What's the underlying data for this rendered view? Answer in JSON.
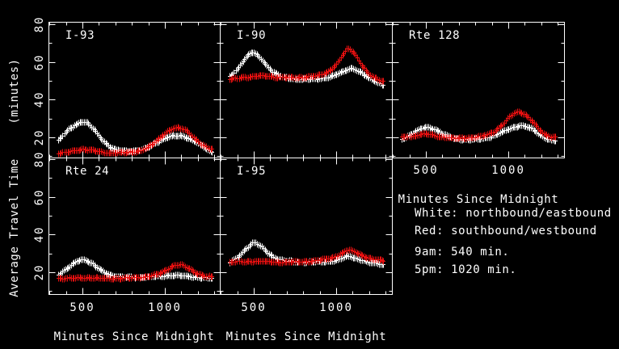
{
  "window": {
    "background": "#000000",
    "foreground": "#ffffff"
  },
  "axes": {
    "x_label": "Minutes Since Midnight",
    "y_label_line1": "Average Travel Time",
    "y_label_line2": "(minutes)",
    "x_tick_labels": [
      "500",
      "1000"
    ],
    "y_tick_labels": [
      "80",
      "60",
      "40",
      "20"
    ]
  },
  "legend": {
    "lines": [
      "White: northbound/eastbound",
      "Red: southbound/westbound",
      "9am: 540 min.",
      "5pm: 1020 min."
    ]
  },
  "chart_data": {
    "type": "scatter",
    "marker": "plus",
    "layout": "2x3 small multiples, shared axes",
    "xlabel": "Minutes Since Midnight",
    "ylabel": "Average Travel Time (minutes)",
    "xlim": [
      294,
      1328
    ],
    "ylim": [
      8,
      81
    ],
    "x_ticks_major": [
      500,
      1000
    ],
    "x_tick_minor_step": 100,
    "x_minor_range": [
      300,
      1300
    ],
    "y_ticks_major": [
      20,
      40,
      60,
      80
    ],
    "y_tick_minor_step": 10,
    "grid": false,
    "colors": {
      "white": "#ffffff",
      "red": "#e81010"
    },
    "series_meaning": {
      "white": "northbound/eastbound",
      "red": "southbound/westbound"
    },
    "panels": [
      {
        "title": "I-93",
        "row": 0,
        "col": 0,
        "white": [
          [
            355,
            18.5
          ],
          [
            400,
            23
          ],
          [
            450,
            26.5
          ],
          [
            500,
            28.5
          ],
          [
            545,
            26.5
          ],
          [
            590,
            22
          ],
          [
            640,
            17
          ],
          [
            690,
            14
          ],
          [
            740,
            13
          ],
          [
            800,
            13
          ],
          [
            850,
            13.5
          ],
          [
            900,
            15
          ],
          [
            950,
            17.5
          ],
          [
            1000,
            19.8
          ],
          [
            1050,
            20.8
          ],
          [
            1100,
            20.8
          ],
          [
            1150,
            19.5
          ],
          [
            1200,
            17
          ],
          [
            1250,
            14
          ],
          [
            1285,
            12.3
          ]
        ],
        "red": [
          [
            355,
            11.8
          ],
          [
            410,
            12.3
          ],
          [
            460,
            13.3
          ],
          [
            505,
            13.8
          ],
          [
            555,
            13.3
          ],
          [
            605,
            12.4
          ],
          [
            660,
            12
          ],
          [
            720,
            12
          ],
          [
            780,
            12.2
          ],
          [
            840,
            13
          ],
          [
            895,
            14.8
          ],
          [
            945,
            18
          ],
          [
            995,
            22
          ],
          [
            1040,
            24.5
          ],
          [
            1085,
            25
          ],
          [
            1130,
            23.5
          ],
          [
            1175,
            20
          ],
          [
            1220,
            16.5
          ],
          [
            1260,
            14.5
          ],
          [
            1285,
            13.8
          ]
        ]
      },
      {
        "title": "I-90",
        "row": 0,
        "col": 1,
        "white": [
          [
            355,
            52.5
          ],
          [
            400,
            56.5
          ],
          [
            450,
            62.5
          ],
          [
            492,
            65
          ],
          [
            535,
            62.5
          ],
          [
            580,
            58
          ],
          [
            630,
            54
          ],
          [
            680,
            52
          ],
          [
            740,
            51.2
          ],
          [
            810,
            51
          ],
          [
            880,
            51.2
          ],
          [
            950,
            52
          ],
          [
            1010,
            53.8
          ],
          [
            1060,
            55.8
          ],
          [
            1095,
            56.8
          ],
          [
            1140,
            55
          ],
          [
            1190,
            52
          ],
          [
            1240,
            49.8
          ],
          [
            1285,
            48
          ]
        ],
        "red": [
          [
            355,
            50.8
          ],
          [
            420,
            51.8
          ],
          [
            490,
            52.3
          ],
          [
            550,
            52.8
          ],
          [
            610,
            52.3
          ],
          [
            680,
            52
          ],
          [
            750,
            51.8
          ],
          [
            820,
            52.2
          ],
          [
            890,
            53
          ],
          [
            950,
            55
          ],
          [
            1000,
            59
          ],
          [
            1045,
            64.5
          ],
          [
            1075,
            67
          ],
          [
            1110,
            64.5
          ],
          [
            1155,
            58.5
          ],
          [
            1205,
            53
          ],
          [
            1250,
            51
          ],
          [
            1285,
            50
          ]
        ]
      },
      {
        "title": "Rte 128",
        "row": 0,
        "col": 2,
        "white": [
          [
            355,
            19.5
          ],
          [
            405,
            21.5
          ],
          [
            455,
            24
          ],
          [
            505,
            25.5
          ],
          [
            550,
            24.5
          ],
          [
            600,
            22
          ],
          [
            655,
            20
          ],
          [
            710,
            19.2
          ],
          [
            770,
            19
          ],
          [
            830,
            19.3
          ],
          [
            890,
            20.5
          ],
          [
            950,
            22.5
          ],
          [
            1010,
            24.8
          ],
          [
            1060,
            26.3
          ],
          [
            1105,
            26
          ],
          [
            1155,
            23.8
          ],
          [
            1205,
            20.8
          ],
          [
            1250,
            19
          ],
          [
            1285,
            18.5
          ]
        ],
        "red": [
          [
            355,
            20.2
          ],
          [
            420,
            20.8
          ],
          [
            480,
            21.8
          ],
          [
            525,
            21.8
          ],
          [
            585,
            20.5
          ],
          [
            650,
            19.8
          ],
          [
            720,
            19.8
          ],
          [
            790,
            20.2
          ],
          [
            855,
            21.2
          ],
          [
            915,
            23.5
          ],
          [
            965,
            27
          ],
          [
            1005,
            30.8
          ],
          [
            1045,
            33.3
          ],
          [
            1090,
            32.8
          ],
          [
            1140,
            29
          ],
          [
            1190,
            24
          ],
          [
            1240,
            21
          ],
          [
            1285,
            20.2
          ]
        ]
      },
      {
        "title": "Rte 24",
        "row": 1,
        "col": 0,
        "white": [
          [
            355,
            18.8
          ],
          [
            405,
            22
          ],
          [
            455,
            25.5
          ],
          [
            500,
            27
          ],
          [
            545,
            25.3
          ],
          [
            590,
            22.5
          ],
          [
            640,
            19.8
          ],
          [
            690,
            18.2
          ],
          [
            750,
            17.6
          ],
          [
            820,
            17.5
          ],
          [
            890,
            17.6
          ],
          [
            960,
            18
          ],
          [
            1030,
            18.5
          ],
          [
            1100,
            18.3
          ],
          [
            1170,
            17.8
          ],
          [
            1230,
            17.3
          ],
          [
            1285,
            17
          ]
        ],
        "red": [
          [
            355,
            16.9
          ],
          [
            430,
            17
          ],
          [
            510,
            17.3
          ],
          [
            590,
            17
          ],
          [
            670,
            16.9
          ],
          [
            750,
            17
          ],
          [
            830,
            17.4
          ],
          [
            900,
            18
          ],
          [
            960,
            19.3
          ],
          [
            1010,
            21.5
          ],
          [
            1055,
            23.8
          ],
          [
            1095,
            24
          ],
          [
            1140,
            22.3
          ],
          [
            1190,
            19.8
          ],
          [
            1240,
            18.2
          ],
          [
            1285,
            17.7
          ]
        ]
      },
      {
        "title": "I-95",
        "row": 1,
        "col": 1,
        "white": [
          [
            355,
            25.2
          ],
          [
            405,
            28.5
          ],
          [
            455,
            33
          ],
          [
            500,
            35.8
          ],
          [
            540,
            34
          ],
          [
            585,
            30.5
          ],
          [
            635,
            27.5
          ],
          [
            690,
            26.2
          ],
          [
            750,
            25.8
          ],
          [
            820,
            25.6
          ],
          [
            890,
            25.7
          ],
          [
            950,
            26
          ],
          [
            1010,
            26.8
          ],
          [
            1065,
            28.6
          ],
          [
            1110,
            27.8
          ],
          [
            1165,
            26.3
          ],
          [
            1220,
            25
          ],
          [
            1285,
            24.2
          ]
        ],
        "red": [
          [
            355,
            25.6
          ],
          [
            430,
            25.7
          ],
          [
            505,
            26
          ],
          [
            575,
            25.8
          ],
          [
            645,
            25.6
          ],
          [
            715,
            25.6
          ],
          [
            785,
            25.8
          ],
          [
            855,
            26.1
          ],
          [
            925,
            26.9
          ],
          [
            985,
            28.3
          ],
          [
            1040,
            30.6
          ],
          [
            1080,
            31.8
          ],
          [
            1125,
            30.3
          ],
          [
            1175,
            28.3
          ],
          [
            1225,
            27
          ],
          [
            1285,
            26.3
          ]
        ]
      }
    ]
  }
}
